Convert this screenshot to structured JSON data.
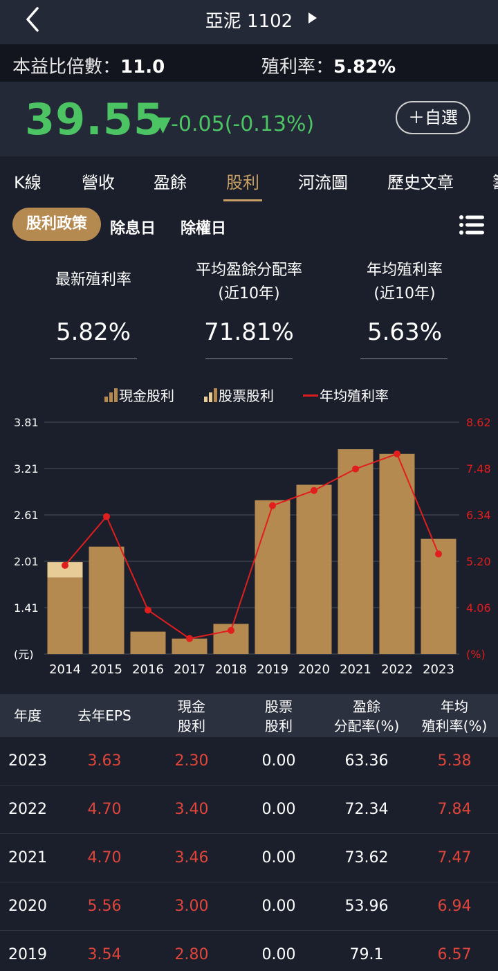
{
  "header": {
    "title": "亞泥 1102"
  },
  "metrics": {
    "pe_label": "本益比倍數：",
    "pe_value": "11.0",
    "yield_label": "殖利率：",
    "yield_value": "5.82%"
  },
  "quote": {
    "price": "39.55",
    "change": "▼-0.05(-0.13%)",
    "watch_label": "＋自選",
    "up_color": "#e0453b",
    "down_color": "#4cc463"
  },
  "tabs": [
    "K線",
    "營收",
    "盈餘",
    "股利",
    "河流圖",
    "歷史文章",
    "籌"
  ],
  "active_tab": "股利",
  "subtabs": {
    "active": "股利政策",
    "others": [
      "除息日",
      "除權日"
    ]
  },
  "stats": [
    {
      "label1": "最新殖利率",
      "label2": "",
      "value": "5.82%"
    },
    {
      "label1": "平均盈餘分配率",
      "label2": "(近10年)",
      "value": "71.81%"
    },
    {
      "label1": "年均殖利率",
      "label2": "(近10年)",
      "value": "5.63%"
    }
  ],
  "legend": {
    "cash": "現金股利",
    "stock": "股票股利",
    "yield": "年均殖利率"
  },
  "chart_data": {
    "type": "bar",
    "categories": [
      "2014",
      "2015",
      "2016",
      "2017",
      "2018",
      "2019",
      "2020",
      "2021",
      "2022",
      "2023"
    ],
    "series": [
      {
        "name": "現金股利",
        "values": [
          1.8,
          2.2,
          1.1,
          1.01,
          1.2,
          2.8,
          3.0,
          3.46,
          3.4,
          2.3
        ],
        "color": "#b58a50"
      },
      {
        "name": "股票股利",
        "values": [
          0.2,
          0,
          0,
          0,
          0,
          0,
          0,
          0,
          0,
          0
        ],
        "color": "#e8cc98"
      },
      {
        "name": "年均殖利率",
        "axis": "right",
        "values": [
          5.1,
          6.3,
          4.0,
          3.3,
          3.5,
          6.57,
          6.94,
          7.47,
          7.84,
          5.38
        ],
        "color": "#e01e1e"
      }
    ],
    "left_ticks": [
      "3.81",
      "3.21",
      "2.61",
      "2.01",
      "1.41",
      "(元)"
    ],
    "right_ticks": [
      "8.62",
      "7.48",
      "6.34",
      "5.20",
      "4.06",
      "(%)"
    ],
    "ylim_left": [
      0.81,
      3.81
    ],
    "ylim_right": [
      2.92,
      8.62
    ],
    "grid": true
  },
  "table": {
    "headers": [
      {
        "l1": "年度",
        "l2": ""
      },
      {
        "l1": "去年EPS",
        "l2": ""
      },
      {
        "l1": "現金",
        "l2": "股利"
      },
      {
        "l1": "股票",
        "l2": "股利"
      },
      {
        "l1": "盈餘",
        "l2": "分配率(%)"
      },
      {
        "l1": "年均",
        "l2": "殖利率(%)"
      }
    ],
    "rows": [
      [
        "2023",
        "3.63",
        "2.30",
        "0.00",
        "63.36",
        "5.38"
      ],
      [
        "2022",
        "4.70",
        "3.40",
        "0.00",
        "72.34",
        "7.84"
      ],
      [
        "2021",
        "4.70",
        "3.46",
        "0.00",
        "73.62",
        "7.47"
      ],
      [
        "2020",
        "5.56",
        "3.00",
        "0.00",
        "53.96",
        "6.94"
      ],
      [
        "2019",
        "3.54",
        "2.80",
        "0.00",
        "79.1",
        "6.57"
      ]
    ]
  }
}
